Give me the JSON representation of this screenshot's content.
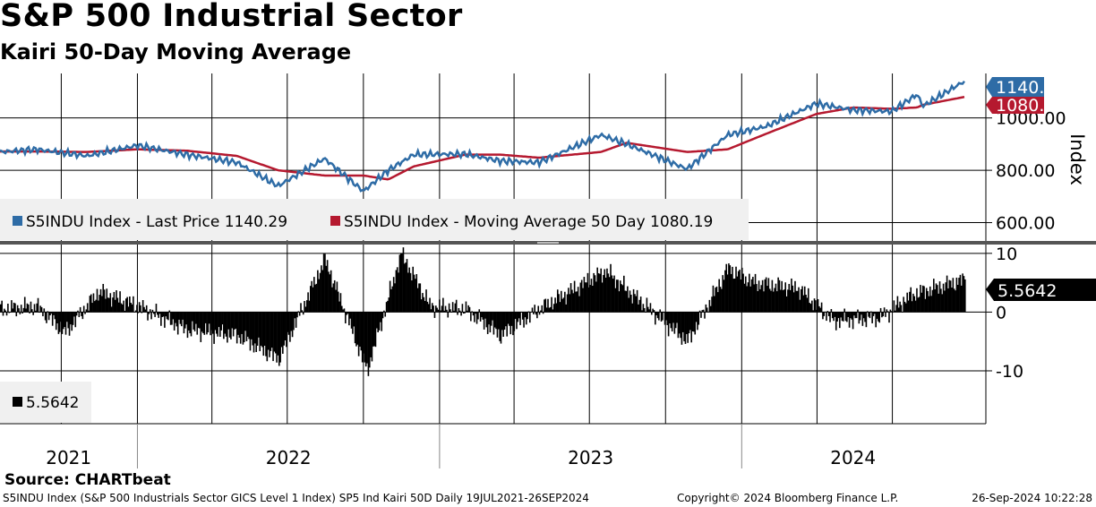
{
  "title": "S&P 500 Industrial Sector",
  "subtitle": "Kairi 50-Day Moving Average",
  "source": "Source: CHARTbeat",
  "footer": {
    "left": "S5INDU Index (S&P 500 Industrials Sector GICS Level 1 Index) SP5 Ind Kairi 50D  Daily 19JUL2021-26SEP2024",
    "center": "Copyright© 2024 Bloomberg Finance L.P.",
    "right": "26-Sep-2024 10:22:28"
  },
  "colors": {
    "price": "#2e6ca6",
    "ma": "#b5192f",
    "kairi": "#000000",
    "grid": "#000000"
  },
  "chart_data": [
    {
      "type": "line",
      "title": "S5INDU Index",
      "ylabel": "Index",
      "ylim": [
        530,
        1170
      ],
      "yticks": [
        600,
        800,
        1000
      ],
      "ytick_labels": [
        "600.00",
        "800.00",
        "1000.00"
      ],
      "legend": [
        "S5INDU Index - Last Price 1140.29",
        "S5INDU Index - Moving Average 50 Day 1080.19"
      ],
      "last_labels": {
        "price": "1140.29",
        "ma": "1080.19"
      },
      "x": [
        "2021-07-19",
        "2021-09-01",
        "2021-11-01",
        "2022-01-01",
        "2022-03-01",
        "2022-05-01",
        "2022-06-20",
        "2022-08-15",
        "2022-10-01",
        "2022-10-31",
        "2022-12-01",
        "2023-02-01",
        "2023-03-15",
        "2023-05-01",
        "2023-07-15",
        "2023-08-15",
        "2023-10-27",
        "2023-12-15",
        "2024-01-31",
        "2024-03-31",
        "2024-05-15",
        "2024-06-30",
        "2024-07-31",
        "2024-08-07",
        "2024-09-26"
      ],
      "series": [
        {
          "name": "S5INDU Index - Last Price",
          "values": [
            870,
            880,
            855,
            895,
            860,
            830,
            740,
            845,
            720,
            800,
            860,
            862,
            836,
            830,
            935,
            900,
            805,
            935,
            968,
            1055,
            1030,
            1025,
            1090,
            1045,
            1140.29
          ]
        },
        {
          "name": "S5INDU Index - Moving Average 50 Day",
          "values": [
            872,
            872,
            870,
            880,
            875,
            855,
            800,
            780,
            780,
            765,
            815,
            860,
            860,
            848,
            870,
            905,
            870,
            880,
            940,
            1015,
            1040,
            1035,
            1040,
            1050,
            1080.19
          ]
        }
      ]
    },
    {
      "type": "bar",
      "title": "SP5 Ind Kairi 50D",
      "ylim": [
        -19,
        11.5
      ],
      "yticks": [
        10,
        0,
        -10
      ],
      "ytick_labels": [
        "10",
        "0",
        "-10"
      ],
      "legend": [
        "5.5642"
      ],
      "last_label": "5.5642",
      "x": [
        "2021-07-19",
        "2021-09-01",
        "2021-10-05",
        "2021-11-15",
        "2022-01-01",
        "2022-03-01",
        "2022-05-01",
        "2022-06-20",
        "2022-08-15",
        "2022-10-05",
        "2022-11-15",
        "2022-12-20",
        "2023-02-01",
        "2023-03-15",
        "2023-05-01",
        "2023-07-20",
        "2023-09-15",
        "2023-10-27",
        "2023-12-15",
        "2024-01-15",
        "2024-03-10",
        "2024-04-20",
        "2024-06-15",
        "2024-07-25",
        "2024-09-26"
      ],
      "values": [
        0.5,
        1.0,
        -3.5,
        3.5,
        1.0,
        -3.0,
        -4.0,
        -8.0,
        9.0,
        -10.0,
        10.0,
        1.0,
        0.5,
        -4.0,
        0.5,
        7.0,
        0.0,
        -5.0,
        7.5,
        5.0,
        4.0,
        -1.5,
        -1.0,
        3.0,
        5.5642
      ]
    }
  ],
  "x_axis": {
    "years": [
      "2021",
      "2022",
      "2023",
      "2024"
    ]
  }
}
